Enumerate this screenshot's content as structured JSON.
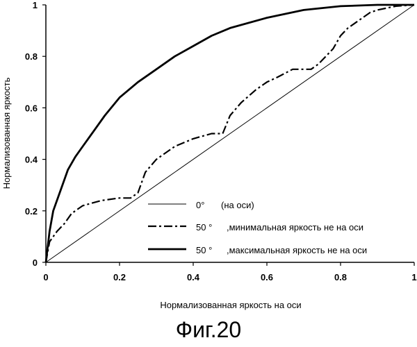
{
  "figure_caption": "Фиг.20",
  "chart_data": {
    "type": "line",
    "title": "",
    "xlabel": "Нормализованная яркость на оси",
    "ylabel": "Нормализованная яркость",
    "xlim": [
      0,
      1
    ],
    "ylim": [
      0,
      1
    ],
    "x_ticks": [
      "0",
      "0.2",
      "0.4",
      "0.6",
      "0.8",
      "1"
    ],
    "y_ticks": [
      "0",
      "0.2",
      "0.4",
      "0.6",
      "0.8",
      "1"
    ],
    "grid": false,
    "legend_position": "bottom-right",
    "series": [
      {
        "name": "0°",
        "annotation": "(на оси)",
        "style": "thin-solid",
        "color": "#000000",
        "x": [
          0,
          1
        ],
        "y": [
          0,
          1
        ]
      },
      {
        "name": "50 °",
        "annotation": ",минимальная яркость не на оси",
        "style": "dash-dot",
        "color": "#000000",
        "x": [
          0,
          0.01,
          0.03,
          0.05,
          0.07,
          0.1,
          0.15,
          0.2,
          0.23,
          0.25,
          0.27,
          0.3,
          0.35,
          0.4,
          0.45,
          0.48,
          0.5,
          0.53,
          0.57,
          0.6,
          0.63,
          0.67,
          0.7,
          0.72,
          0.74,
          0.76,
          0.78,
          0.8,
          0.82,
          0.85,
          0.88,
          0.9,
          0.95,
          1
        ],
        "y": [
          0,
          0.08,
          0.12,
          0.15,
          0.19,
          0.22,
          0.24,
          0.25,
          0.25,
          0.27,
          0.35,
          0.4,
          0.45,
          0.48,
          0.5,
          0.5,
          0.57,
          0.62,
          0.67,
          0.7,
          0.72,
          0.75,
          0.75,
          0.75,
          0.77,
          0.8,
          0.83,
          0.88,
          0.91,
          0.94,
          0.97,
          0.98,
          0.995,
          1
        ]
      },
      {
        "name": "50 °",
        "annotation": ",максимальная яркость не на оси",
        "style": "thick-solid",
        "color": "#000000",
        "x": [
          0,
          0.01,
          0.02,
          0.04,
          0.06,
          0.08,
          0.1,
          0.13,
          0.16,
          0.2,
          0.25,
          0.3,
          0.35,
          0.4,
          0.45,
          0.5,
          0.6,
          0.7,
          0.8,
          0.9,
          1
        ],
        "y": [
          0,
          0.12,
          0.2,
          0.28,
          0.36,
          0.41,
          0.45,
          0.51,
          0.57,
          0.64,
          0.7,
          0.75,
          0.8,
          0.84,
          0.88,
          0.91,
          0.95,
          0.98,
          0.995,
          1,
          1
        ]
      }
    ]
  }
}
